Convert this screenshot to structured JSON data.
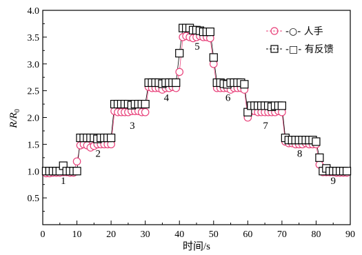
{
  "chart_data": {
    "type": "scatter",
    "xlabel": "时间/s",
    "ylabel_main": "R/R",
    "ylabel_sub": "0",
    "xlim": [
      0,
      90
    ],
    "ylim": [
      0,
      4.0
    ],
    "x_ticks": [
      "0",
      "10",
      "20",
      "30",
      "40",
      "50",
      "60",
      "70",
      "80",
      "90"
    ],
    "y_ticks": [
      "0.5",
      "1.0",
      "1.5",
      "2.0",
      "2.5",
      "3.0",
      "3.5",
      "4.0"
    ],
    "legend": {
      "position": "top-right",
      "entries": [
        "-○- 人手",
        "-□- 有反馈"
      ]
    },
    "annotations": [
      {
        "text": "1",
        "x": 6.0,
        "y": 0.82
      },
      {
        "text": "2",
        "x": 16.2,
        "y": 1.33
      },
      {
        "text": "3",
        "x": 26.2,
        "y": 1.85
      },
      {
        "text": "4",
        "x": 36.2,
        "y": 2.37
      },
      {
        "text": "5",
        "x": 45.2,
        "y": 3.33
      },
      {
        "text": "6",
        "x": 54.2,
        "y": 2.37
      },
      {
        "text": "7",
        "x": 65.2,
        "y": 1.85
      },
      {
        "text": "8",
        "x": 75.2,
        "y": 1.33
      },
      {
        "text": "9",
        "x": 85.0,
        "y": 0.82
      }
    ],
    "series": [
      {
        "name": "人手",
        "marker": "circle",
        "color": "#e8417a",
        "points": [
          [
            1,
            0.96
          ],
          [
            2,
            0.96
          ],
          [
            3,
            0.97
          ],
          [
            4,
            0.97
          ],
          [
            5,
            0.97
          ],
          [
            6,
            0.98
          ],
          [
            7,
            0.98
          ],
          [
            8,
            0.97
          ],
          [
            9,
            0.97
          ],
          [
            10,
            1.18
          ],
          [
            11,
            1.48
          ],
          [
            12,
            1.5
          ],
          [
            13,
            1.48
          ],
          [
            14,
            1.44
          ],
          [
            15,
            1.47
          ],
          [
            16,
            1.5
          ],
          [
            17,
            1.5
          ],
          [
            18,
            1.5
          ],
          [
            19,
            1.5
          ],
          [
            20,
            1.5
          ],
          [
            21,
            2.12
          ],
          [
            22,
            2.1
          ],
          [
            23,
            2.1
          ],
          [
            24,
            2.1
          ],
          [
            25,
            2.1
          ],
          [
            26,
            2.12
          ],
          [
            27,
            2.12
          ],
          [
            28,
            2.12
          ],
          [
            29,
            2.1
          ],
          [
            30,
            2.1
          ],
          [
            31,
            2.57
          ],
          [
            32,
            2.55
          ],
          [
            33,
            2.55
          ],
          [
            34,
            2.55
          ],
          [
            35,
            2.52
          ],
          [
            36,
            2.55
          ],
          [
            37,
            2.55
          ],
          [
            38,
            2.57
          ],
          [
            39,
            2.55
          ],
          [
            40,
            2.85
          ],
          [
            41,
            3.5
          ],
          [
            42,
            3.52
          ],
          [
            43,
            3.5
          ],
          [
            44,
            3.48
          ],
          [
            45,
            3.5
          ],
          [
            46,
            3.52
          ],
          [
            47,
            3.5
          ],
          [
            48,
            3.5
          ],
          [
            49,
            3.48
          ],
          [
            50,
            3.0
          ],
          [
            51,
            2.55
          ],
          [
            52,
            2.55
          ],
          [
            53,
            2.55
          ],
          [
            54,
            2.55
          ],
          [
            55,
            2.52
          ],
          [
            56,
            2.55
          ],
          [
            57,
            2.55
          ],
          [
            58,
            2.55
          ],
          [
            59,
            2.52
          ],
          [
            60,
            2.0
          ],
          [
            61,
            2.12
          ],
          [
            62,
            2.12
          ],
          [
            63,
            2.1
          ],
          [
            64,
            2.1
          ],
          [
            65,
            2.1
          ],
          [
            66,
            2.1
          ],
          [
            67,
            2.1
          ],
          [
            68,
            2.1
          ],
          [
            69,
            2.12
          ],
          [
            70,
            2.1
          ],
          [
            71,
            1.55
          ],
          [
            72,
            1.52
          ],
          [
            73,
            1.52
          ],
          [
            74,
            1.5
          ],
          [
            75,
            1.5
          ],
          [
            76,
            1.5
          ],
          [
            77,
            1.52
          ],
          [
            78,
            1.5
          ],
          [
            79,
            1.5
          ],
          [
            80,
            1.5
          ],
          [
            81,
            1.12
          ],
          [
            82,
            0.98
          ],
          [
            83,
            0.98
          ],
          [
            84,
            0.98
          ],
          [
            85,
            0.98
          ],
          [
            86,
            0.97
          ],
          [
            87,
            0.97
          ],
          [
            88,
            0.97
          ],
          [
            89,
            0.97
          ]
        ]
      },
      {
        "name": "有反馈",
        "marker": "square",
        "color": "#000000",
        "points": [
          [
            1,
            1.0
          ],
          [
            2,
            1.0
          ],
          [
            3,
            1.0
          ],
          [
            4,
            1.0
          ],
          [
            5,
            1.0
          ],
          [
            6,
            1.1
          ],
          [
            7,
            1.0
          ],
          [
            8,
            1.0
          ],
          [
            9,
            1.0
          ],
          [
            10,
            1.0
          ],
          [
            11,
            1.62
          ],
          [
            12,
            1.62
          ],
          [
            13,
            1.62
          ],
          [
            14,
            1.62
          ],
          [
            15,
            1.62
          ],
          [
            16,
            1.6
          ],
          [
            17,
            1.62
          ],
          [
            18,
            1.62
          ],
          [
            19,
            1.62
          ],
          [
            20,
            1.62
          ],
          [
            21,
            2.25
          ],
          [
            22,
            2.25
          ],
          [
            23,
            2.25
          ],
          [
            24,
            2.25
          ],
          [
            25,
            2.25
          ],
          [
            26,
            2.23
          ],
          [
            27,
            2.25
          ],
          [
            28,
            2.25
          ],
          [
            29,
            2.25
          ],
          [
            30,
            2.25
          ],
          [
            31,
            2.65
          ],
          [
            32,
            2.65
          ],
          [
            33,
            2.65
          ],
          [
            34,
            2.65
          ],
          [
            35,
            2.63
          ],
          [
            36,
            2.65
          ],
          [
            37,
            2.65
          ],
          [
            38,
            2.65
          ],
          [
            39,
            2.65
          ],
          [
            40,
            3.2
          ],
          [
            41,
            3.67
          ],
          [
            42,
            3.67
          ],
          [
            43,
            3.67
          ],
          [
            44,
            3.63
          ],
          [
            45,
            3.63
          ],
          [
            46,
            3.62
          ],
          [
            47,
            3.6
          ],
          [
            48,
            3.6
          ],
          [
            49,
            3.6
          ],
          [
            50,
            3.12
          ],
          [
            51,
            2.65
          ],
          [
            52,
            2.65
          ],
          [
            53,
            2.63
          ],
          [
            54,
            2.62
          ],
          [
            55,
            2.65
          ],
          [
            56,
            2.65
          ],
          [
            57,
            2.65
          ],
          [
            58,
            2.65
          ],
          [
            59,
            2.62
          ],
          [
            60,
            2.1
          ],
          [
            61,
            2.22
          ],
          [
            62,
            2.22
          ],
          [
            63,
            2.22
          ],
          [
            64,
            2.22
          ],
          [
            65,
            2.22
          ],
          [
            66,
            2.22
          ],
          [
            67,
            2.2
          ],
          [
            68,
            2.22
          ],
          [
            69,
            2.22
          ],
          [
            70,
            2.22
          ],
          [
            71,
            1.62
          ],
          [
            72,
            1.58
          ],
          [
            73,
            1.58
          ],
          [
            74,
            1.58
          ],
          [
            75,
            1.58
          ],
          [
            76,
            1.58
          ],
          [
            77,
            1.58
          ],
          [
            78,
            1.58
          ],
          [
            79,
            1.58
          ],
          [
            80,
            1.55
          ],
          [
            81,
            1.25
          ],
          [
            82,
            1.0
          ],
          [
            83,
            1.05
          ],
          [
            84,
            1.0
          ],
          [
            85,
            1.0
          ],
          [
            86,
            1.0
          ],
          [
            87,
            1.0
          ],
          [
            88,
            1.0
          ],
          [
            89,
            1.0
          ]
        ]
      }
    ]
  }
}
